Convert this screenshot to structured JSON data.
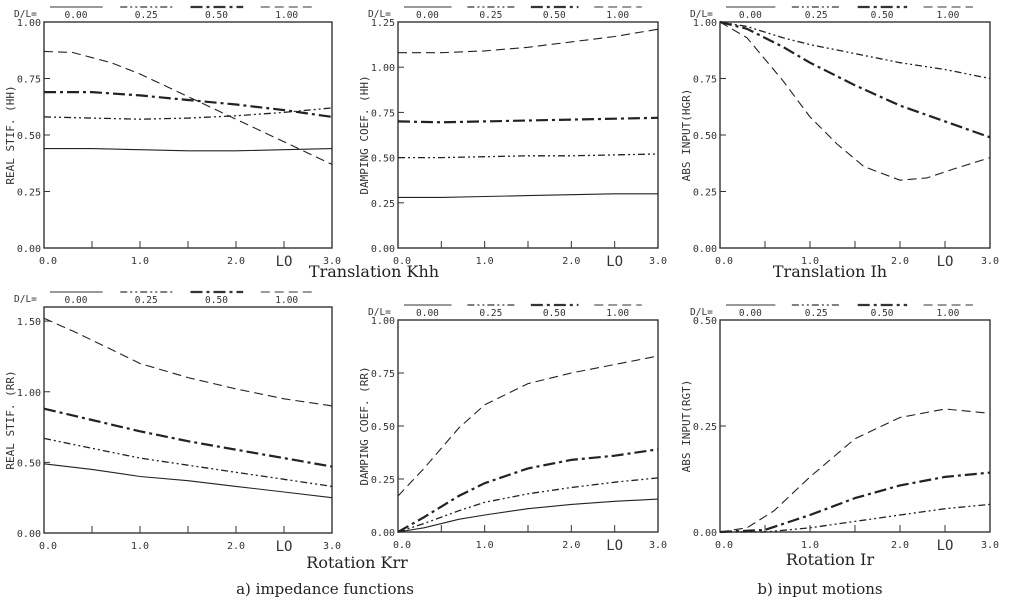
{
  "captions": {
    "left": "a) impedance functions",
    "right": "b) input motions"
  },
  "chart_data": [
    {
      "id": "khh-real",
      "type": "line",
      "ylabel": "REAL STIF. (HH)",
      "xlim": [
        0,
        3
      ],
      "ylim": [
        0,
        1
      ],
      "yticks": [
        "0.00",
        "0.25",
        "0.50",
        "0.75",
        "1.00"
      ],
      "xticks": [
        "0.0",
        "1.0",
        "2.0",
        "3.0"
      ],
      "xlabel_extra": "LO",
      "legend_prefix": "D/L=",
      "series": [
        {
          "name": "0.00",
          "style": "solid",
          "x": [
            0.0,
            0.5,
            1.0,
            1.5,
            2.0,
            2.5,
            3.0
          ],
          "y": [
            0.44,
            0.44,
            0.435,
            0.43,
            0.43,
            0.435,
            0.44
          ]
        },
        {
          "name": "0.25",
          "style": "dashdotdot",
          "x": [
            0.0,
            0.5,
            1.0,
            1.5,
            2.0,
            2.5,
            3.0
          ],
          "y": [
            0.58,
            0.575,
            0.57,
            0.575,
            0.585,
            0.6,
            0.62
          ]
        },
        {
          "name": "0.50",
          "style": "dashdot",
          "x": [
            0.0,
            0.5,
            1.0,
            1.5,
            2.0,
            2.5,
            3.0
          ],
          "y": [
            0.69,
            0.69,
            0.675,
            0.655,
            0.635,
            0.61,
            0.58
          ]
        },
        {
          "name": "1.00",
          "style": "dashed",
          "x": [
            0.0,
            0.3,
            0.7,
            1.0,
            1.5,
            2.0,
            2.5,
            3.0
          ],
          "y": [
            0.87,
            0.865,
            0.82,
            0.77,
            0.67,
            0.57,
            0.47,
            0.37
          ]
        }
      ],
      "footer": "Translation Khh"
    },
    {
      "id": "khh-damp",
      "type": "line",
      "ylabel": "DAMPING COEF. (HH)",
      "xlim": [
        0,
        3
      ],
      "ylim": [
        0,
        1.25
      ],
      "yticks": [
        "0.00",
        "0.25",
        "0.50",
        "0.75",
        "1.00",
        "1.25"
      ],
      "xticks": [
        "0.0",
        "1.0",
        "2.0",
        "3.0"
      ],
      "xlabel_extra": "LO",
      "legend_prefix": "D/L=",
      "series": [
        {
          "name": "0.00",
          "style": "solid",
          "x": [
            0.0,
            0.5,
            1.0,
            1.5,
            2.0,
            2.5,
            3.0
          ],
          "y": [
            0.28,
            0.28,
            0.285,
            0.29,
            0.295,
            0.3,
            0.3
          ]
        },
        {
          "name": "0.25",
          "style": "dashdotdot",
          "x": [
            0.0,
            0.5,
            1.0,
            1.5,
            2.0,
            2.5,
            3.0
          ],
          "y": [
            0.5,
            0.5,
            0.505,
            0.51,
            0.51,
            0.515,
            0.52
          ]
        },
        {
          "name": "0.50",
          "style": "dashdot",
          "x": [
            0.0,
            0.5,
            1.0,
            1.5,
            2.0,
            2.5,
            3.0
          ],
          "y": [
            0.7,
            0.695,
            0.7,
            0.705,
            0.71,
            0.715,
            0.72
          ]
        },
        {
          "name": "1.00",
          "style": "dashed",
          "x": [
            0.0,
            0.5,
            1.0,
            1.5,
            2.0,
            2.5,
            3.0
          ],
          "y": [
            1.08,
            1.08,
            1.09,
            1.11,
            1.14,
            1.17,
            1.21
          ]
        }
      ]
    },
    {
      "id": "ih-abs",
      "type": "line",
      "ylabel": "ABS INPUT(HGR)",
      "xlim": [
        0,
        3
      ],
      "ylim": [
        0,
        1
      ],
      "yticks": [
        "0.00",
        "0.25",
        "0.50",
        "0.75",
        "1.00"
      ],
      "xticks": [
        "0.0",
        "1.0",
        "2.0",
        "3.0"
      ],
      "xlabel_extra": "LO",
      "legend_prefix": "D/L=",
      "series": [
        {
          "name": "0.25",
          "style": "dashdotdot",
          "x": [
            0.0,
            0.3,
            0.7,
            1.0,
            1.5,
            2.0,
            2.5,
            3.0
          ],
          "y": [
            1.0,
            0.98,
            0.93,
            0.9,
            0.86,
            0.82,
            0.79,
            0.75
          ]
        },
        {
          "name": "0.50",
          "style": "dashdot",
          "x": [
            0.0,
            0.3,
            0.7,
            1.0,
            1.5,
            2.0,
            2.5,
            3.0
          ],
          "y": [
            1.0,
            0.97,
            0.89,
            0.82,
            0.72,
            0.63,
            0.56,
            0.49
          ]
        },
        {
          "name": "1.00",
          "style": "dashed",
          "x": [
            0.0,
            0.3,
            0.7,
            1.0,
            1.3,
            1.6,
            2.0,
            2.3,
            2.6,
            3.0
          ],
          "y": [
            1.0,
            0.93,
            0.74,
            0.58,
            0.46,
            0.36,
            0.3,
            0.31,
            0.35,
            0.4
          ]
        }
      ],
      "footer": "Translation Ih"
    },
    {
      "id": "krr-real",
      "type": "line",
      "ylabel": "REAL STIF. (RR)",
      "xlim": [
        0,
        3
      ],
      "ylim": [
        0,
        1.6
      ],
      "yticks": [
        "0.00",
        "0.50",
        "1.00",
        "1.50"
      ],
      "ytickvals": [
        0,
        0.5,
        1.0,
        1.5
      ],
      "xticks": [
        "0.0",
        "1.0",
        "2.0",
        "3.0"
      ],
      "xlabel_extra": "LO",
      "legend_prefix": "D/L=",
      "series": [
        {
          "name": "0.00",
          "style": "solid",
          "x": [
            0.0,
            0.5,
            1.0,
            1.5,
            2.0,
            2.5,
            3.0
          ],
          "y": [
            0.49,
            0.45,
            0.4,
            0.37,
            0.33,
            0.29,
            0.25
          ]
        },
        {
          "name": "0.25",
          "style": "dashdotdot",
          "x": [
            0.0,
            0.5,
            1.0,
            1.5,
            2.0,
            2.5,
            3.0
          ],
          "y": [
            0.67,
            0.6,
            0.53,
            0.48,
            0.43,
            0.38,
            0.33
          ]
        },
        {
          "name": "0.50",
          "style": "dashdot",
          "x": [
            0.0,
            0.5,
            1.0,
            1.5,
            2.0,
            2.5,
            3.0
          ],
          "y": [
            0.88,
            0.8,
            0.72,
            0.65,
            0.59,
            0.53,
            0.47
          ]
        },
        {
          "name": "1.00",
          "style": "dashed",
          "x": [
            0.0,
            0.3,
            0.7,
            1.0,
            1.5,
            2.0,
            2.5,
            3.0
          ],
          "y": [
            1.52,
            1.43,
            1.3,
            1.2,
            1.1,
            1.02,
            0.95,
            0.9
          ]
        }
      ],
      "footer": "Rotation Krr"
    },
    {
      "id": "krr-damp",
      "type": "line",
      "ylabel": "DAMPING COEF. (RR)",
      "xlim": [
        0,
        3
      ],
      "ylim": [
        0,
        1
      ],
      "yticks": [
        "0.00",
        "0.25",
        "0.50",
        "0.75",
        "1.00"
      ],
      "xticks": [
        "0.0",
        "1.0",
        "2.0",
        "3.0"
      ],
      "xlabel_extra": "LO",
      "legend_prefix": "D/L=",
      "series": [
        {
          "name": "0.00",
          "style": "solid",
          "x": [
            0.0,
            0.3,
            0.7,
            1.0,
            1.5,
            2.0,
            2.5,
            3.0
          ],
          "y": [
            0.0,
            0.02,
            0.06,
            0.08,
            0.11,
            0.13,
            0.145,
            0.155
          ]
        },
        {
          "name": "0.25",
          "style": "dashdotdot",
          "x": [
            0.0,
            0.3,
            0.7,
            1.0,
            1.5,
            2.0,
            2.5,
            3.0
          ],
          "y": [
            0.0,
            0.04,
            0.1,
            0.14,
            0.18,
            0.21,
            0.235,
            0.255
          ]
        },
        {
          "name": "0.50",
          "style": "dashdot",
          "x": [
            0.0,
            0.3,
            0.7,
            1.0,
            1.5,
            2.0,
            2.5,
            3.0
          ],
          "y": [
            0.0,
            0.07,
            0.17,
            0.23,
            0.3,
            0.34,
            0.36,
            0.39
          ]
        },
        {
          "name": "1.00",
          "style": "dashed",
          "x": [
            0.0,
            0.3,
            0.7,
            1.0,
            1.5,
            2.0,
            2.5,
            3.0
          ],
          "y": [
            0.17,
            0.3,
            0.49,
            0.6,
            0.7,
            0.75,
            0.79,
            0.83
          ]
        }
      ]
    },
    {
      "id": "ir-abs",
      "type": "line",
      "ylabel": "ABS INPUT(RGT)",
      "xlim": [
        0,
        3
      ],
      "ylim": [
        0,
        0.5
      ],
      "yticks": [
        "0.00",
        "0.25",
        "0.50"
      ],
      "ytickvals": [
        0,
        0.25,
        0.5
      ],
      "xticks": [
        "0.0",
        "1.0",
        "2.0",
        "3.0"
      ],
      "xlabel_extra": "LO",
      "legend_prefix": "D/L=",
      "series": [
        {
          "name": "0.25",
          "style": "dashdotdot",
          "x": [
            0.0,
            0.5,
            1.0,
            1.5,
            2.0,
            2.5,
            3.0
          ],
          "y": [
            0.0,
            0.0,
            0.01,
            0.025,
            0.04,
            0.055,
            0.065
          ]
        },
        {
          "name": "0.50",
          "style": "dashdot",
          "x": [
            0.0,
            0.5,
            1.0,
            1.5,
            2.0,
            2.5,
            3.0
          ],
          "y": [
            0.0,
            0.005,
            0.04,
            0.08,
            0.11,
            0.13,
            0.14
          ]
        },
        {
          "name": "1.00",
          "style": "dashed",
          "x": [
            0.0,
            0.3,
            0.6,
            1.0,
            1.5,
            2.0,
            2.5,
            3.0
          ],
          "y": [
            0.0,
            0.01,
            0.05,
            0.13,
            0.22,
            0.27,
            0.29,
            0.28
          ]
        }
      ],
      "footer": "Rotation Ir"
    }
  ]
}
